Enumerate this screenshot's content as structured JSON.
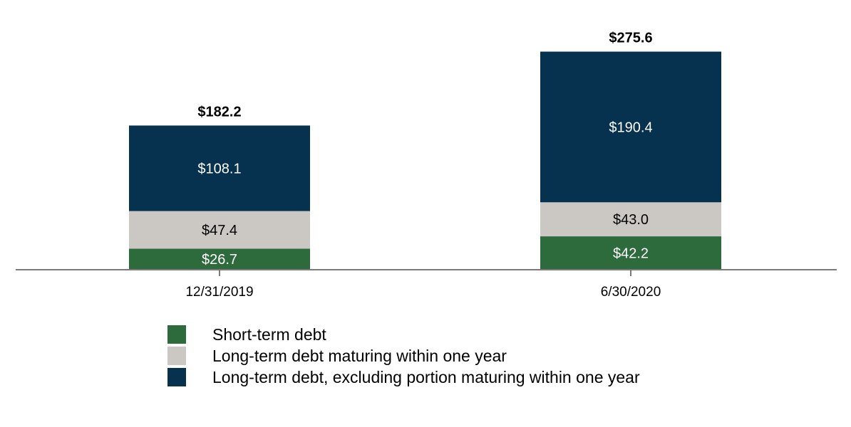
{
  "chart_data": {
    "type": "bar",
    "stacked": true,
    "categories": [
      "12/31/2019",
      "6/30/2020"
    ],
    "series": [
      {
        "name": "Short-term debt",
        "values": [
          26.7,
          42.2
        ],
        "labels": [
          "$26.7",
          "$42.2"
        ],
        "color": "#2e6b3c",
        "label_color": "#ffffff"
      },
      {
        "name": "Long-term debt maturing within one year",
        "values": [
          47.4,
          43.0
        ],
        "labels": [
          "$47.4",
          "$43.0"
        ],
        "color": "#cbc8c3",
        "label_color": "#000000"
      },
      {
        "name": "Long-term debt, excluding portion maturing within one year",
        "values": [
          108.1,
          190.4
        ],
        "labels": [
          "$108.1",
          "$190.4"
        ],
        "color": "#06314f",
        "label_color": "#ffffff"
      }
    ],
    "totals": [
      182.2,
      275.6
    ],
    "total_labels": [
      "$182.2",
      "$275.6"
    ],
    "ylim": [
      0,
      300
    ],
    "grid": false,
    "legend_position": "bottom-left"
  }
}
